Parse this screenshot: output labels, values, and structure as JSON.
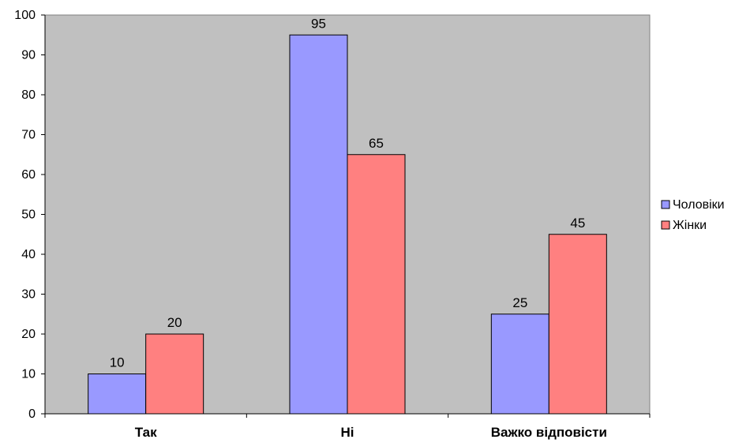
{
  "chart_data": {
    "type": "bar",
    "title": "",
    "xlabel": "",
    "ylabel": "",
    "categories": [
      "Так",
      "Ні",
      "Важко відповісти"
    ],
    "series": [
      {
        "name": "Чоловіки",
        "values": [
          10,
          95,
          25
        ],
        "color": "#9999ff"
      },
      {
        "name": "Жінки",
        "values": [
          20,
          65,
          45
        ],
        "color": "#ff8080"
      }
    ],
    "ylim": [
      0,
      100
    ],
    "yticks": [
      0,
      10,
      20,
      30,
      40,
      50,
      60,
      70,
      80,
      90,
      100
    ],
    "grid": false,
    "plot_background": "#c0c0c0",
    "legend_position": "right"
  }
}
